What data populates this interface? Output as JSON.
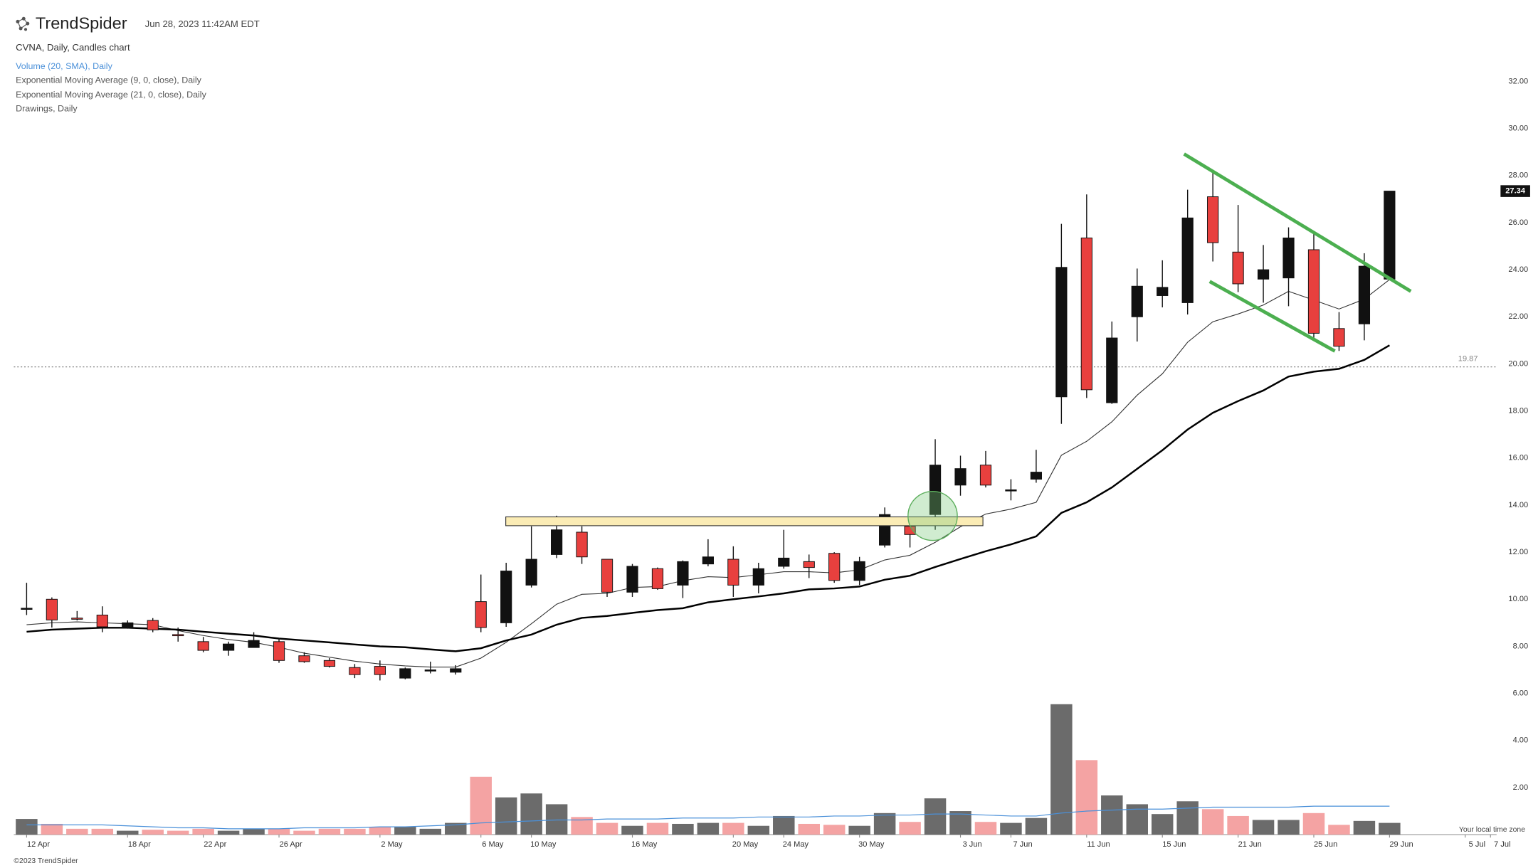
{
  "chart_data": {
    "type": "candlestick",
    "brand": "TrendSpider",
    "timestamp": "Jun 28, 2023 11:42AM EDT",
    "title": "CVNA, Daily, Candles chart",
    "drawings_label": "Drawings, Daily",
    "copyright": "©2023 TrendSpider",
    "timezone_note": "Your local time zone",
    "categories": [
      "12 Apr",
      null,
      null,
      null,
      "18 Apr",
      null,
      null,
      "22 Apr",
      null,
      null,
      "26 Apr",
      null,
      null,
      null,
      "2 May",
      null,
      null,
      null,
      "6 May",
      null,
      "10 May",
      null,
      null,
      null,
      "16 May",
      null,
      null,
      null,
      "20 May",
      null,
      "24 May",
      null,
      null,
      "30 May",
      null,
      null,
      null,
      "3 Jun",
      null,
      "7 Jun",
      null,
      null,
      "11 Jun",
      null,
      null,
      "15 Jun",
      null,
      null,
      "21 Jun",
      null,
      null,
      "25 Jun",
      null,
      null,
      "29 Jun",
      null,
      null,
      "5 Jul",
      "7 Jul"
    ],
    "open": [
      9.6,
      10.0,
      9.2,
      9.33,
      8.8,
      9.1,
      8.5,
      8.2,
      7.83,
      7.95,
      8.2,
      7.6,
      7.4,
      7.1,
      7.15,
      6.65,
      6.95,
      6.9,
      9.9,
      9.0,
      10.6,
      11.9,
      12.85,
      11.7,
      10.3,
      11.3,
      10.6,
      11.5,
      11.7,
      10.6,
      11.4,
      11.6,
      11.95,
      10.8,
      12.3,
      13.1,
      13.6,
      14.85,
      15.7,
      14.6,
      15.1,
      18.6,
      25.35,
      18.35,
      22.0,
      22.9,
      22.6,
      27.1,
      24.75,
      23.6,
      23.65,
      24.85,
      21.5,
      21.7,
      23.6,
      null,
      null,
      null,
      null
    ],
    "high": [
      10.7,
      10.08,
      9.5,
      9.7,
      9.1,
      9.2,
      8.8,
      8.4,
      8.2,
      8.6,
      8.35,
      7.75,
      7.5,
      7.25,
      7.4,
      7.1,
      7.35,
      7.2,
      11.05,
      11.55,
      13.1,
      13.55,
      13.1,
      11.7,
      11.5,
      11.35,
      11.65,
      12.55,
      12.25,
      11.55,
      12.95,
      11.9,
      12.0,
      11.8,
      13.9,
      13.1,
      16.8,
      16.1,
      16.3,
      15.1,
      16.35,
      25.95,
      27.2,
      21.8,
      24.05,
      24.4,
      27.4,
      28.2,
      26.75,
      25.05,
      25.8,
      25.6,
      22.2,
      24.7,
      27.34,
      null,
      null,
      null,
      null
    ],
    "low": [
      9.33,
      8.8,
      9.1,
      8.6,
      8.75,
      8.6,
      8.2,
      7.75,
      7.6,
      7.95,
      7.3,
      7.3,
      7.1,
      6.65,
      6.55,
      6.6,
      6.85,
      6.8,
      8.6,
      8.83,
      10.5,
      11.75,
      11.5,
      10.1,
      10.1,
      10.4,
      10.05,
      11.4,
      10.1,
      10.25,
      11.3,
      10.9,
      10.7,
      10.6,
      12.2,
      12.2,
      12.95,
      14.4,
      14.75,
      14.2,
      14.95,
      17.45,
      18.55,
      18.3,
      20.95,
      22.4,
      22.1,
      24.35,
      23.05,
      22.6,
      22.45,
      21.1,
      20.55,
      21.0,
      23.55,
      null,
      null,
      null,
      null
    ],
    "close": [
      9.62,
      9.12,
      9.18,
      8.83,
      9.0,
      8.7,
      8.45,
      7.83,
      8.1,
      8.25,
      7.4,
      7.35,
      7.15,
      6.8,
      6.8,
      7.05,
      7.0,
      7.05,
      8.8,
      11.2,
      11.7,
      12.95,
      11.8,
      10.3,
      11.4,
      10.45,
      11.6,
      11.8,
      10.6,
      11.3,
      11.75,
      11.35,
      10.8,
      11.6,
      13.6,
      12.75,
      15.7,
      15.55,
      14.85,
      14.65,
      15.4,
      24.1,
      18.9,
      21.1,
      23.3,
      23.25,
      26.2,
      25.15,
      23.4,
      24.0,
      25.35,
      21.3,
      20.75,
      24.15,
      27.34,
      null,
      null,
      null,
      null
    ],
    "up_color": "#111111",
    "down_color": "#e8403e",
    "series": [
      {
        "name": "Exponential Moving Average (9, 0, close), Daily",
        "color": "#333333",
        "values": [
          8.92,
          9.0,
          9.04,
          9.0,
          8.96,
          8.92,
          8.67,
          8.46,
          8.29,
          8.17,
          7.96,
          7.71,
          7.54,
          7.37,
          7.25,
          7.17,
          7.12,
          7.12,
          7.5,
          8.17,
          8.96,
          9.79,
          10.21,
          10.25,
          10.5,
          10.54,
          10.79,
          10.96,
          10.92,
          11.04,
          11.17,
          11.17,
          11.12,
          11.25,
          11.67,
          11.87,
          12.42,
          13.08,
          13.62,
          13.83,
          14.12,
          16.12,
          16.71,
          17.54,
          18.67,
          19.58,
          20.92,
          21.79,
          22.12,
          22.5,
          23.08,
          22.71,
          22.33,
          22.75,
          23.58,
          null,
          null,
          null,
          null
        ]
      },
      {
        "name": "Exponential Moving Average (21, 0, close), Daily",
        "color": "#000000",
        "values": [
          8.62,
          8.71,
          8.75,
          8.79,
          8.79,
          8.75,
          8.71,
          8.62,
          8.54,
          8.46,
          8.33,
          8.25,
          8.17,
          8.08,
          8.0,
          7.96,
          7.87,
          7.79,
          7.92,
          8.25,
          8.5,
          8.92,
          9.21,
          9.29,
          9.42,
          9.54,
          9.62,
          9.87,
          10.0,
          10.12,
          10.25,
          10.42,
          10.46,
          10.54,
          10.83,
          11.0,
          11.37,
          11.71,
          12.04,
          12.33,
          12.67,
          13.67,
          14.12,
          14.75,
          15.54,
          16.33,
          17.21,
          17.92,
          18.42,
          18.87,
          19.46,
          19.67,
          19.79,
          20.17,
          20.79,
          null,
          null,
          null,
          null
        ]
      }
    ],
    "volume": {
      "name": "Volume (20, SMA), Daily",
      "color": "#4a90d9",
      "up_color": "#6b6b6b",
      "down_color": "#f4a3a3",
      "values": [
        16,
        11,
        6,
        6,
        4,
        5,
        4,
        6,
        4,
        6,
        6,
        4,
        6,
        6,
        8,
        8,
        6,
        12,
        59,
        38,
        42,
        31,
        18,
        12,
        9,
        12,
        11,
        12,
        12,
        9,
        19,
        11,
        10,
        9,
        22,
        13,
        37,
        24,
        13,
        12,
        17,
        133,
        76,
        40,
        31,
        21,
        34,
        26,
        19,
        15,
        15,
        22,
        10,
        14,
        12,
        null,
        null,
        null,
        null
      ],
      "sma": [
        10,
        10,
        10,
        10,
        9,
        8,
        7,
        7,
        6,
        6,
        6,
        7,
        7,
        7,
        8,
        8,
        9,
        10,
        12,
        13,
        14,
        15,
        15,
        16,
        16,
        16,
        17,
        17,
        17,
        18,
        18,
        18,
        19,
        19,
        20,
        20,
        21,
        21,
        20,
        19,
        19,
        22,
        24,
        25,
        26,
        26,
        27,
        28,
        28,
        28,
        28,
        29,
        29,
        29,
        29,
        null,
        null,
        null,
        null
      ]
    },
    "price_line": 19.87,
    "ylim": [
      0,
      32
    ],
    "yticks": [
      {
        "value": 2,
        "label": "2.00"
      },
      {
        "value": 4,
        "label": "4.00"
      },
      {
        "value": 6,
        "label": "6.00"
      },
      {
        "value": 8,
        "label": "8.00"
      },
      {
        "value": 10,
        "label": "10.00"
      },
      {
        "value": 12,
        "label": "12.00"
      },
      {
        "value": 14,
        "label": "14.00"
      },
      {
        "value": 16,
        "label": "16.00"
      },
      {
        "value": 18,
        "label": "18.00"
      },
      {
        "value": 20,
        "label": "20.00"
      },
      {
        "value": 22,
        "label": "22.00"
      },
      {
        "value": 24,
        "label": "24.00"
      },
      {
        "value": 26,
        "label": "26.00"
      },
      {
        "value": 28,
        "label": "28.00"
      },
      {
        "value": 30,
        "label": "30.00"
      },
      {
        "value": 32,
        "label": "32.00"
      }
    ]
  }
}
